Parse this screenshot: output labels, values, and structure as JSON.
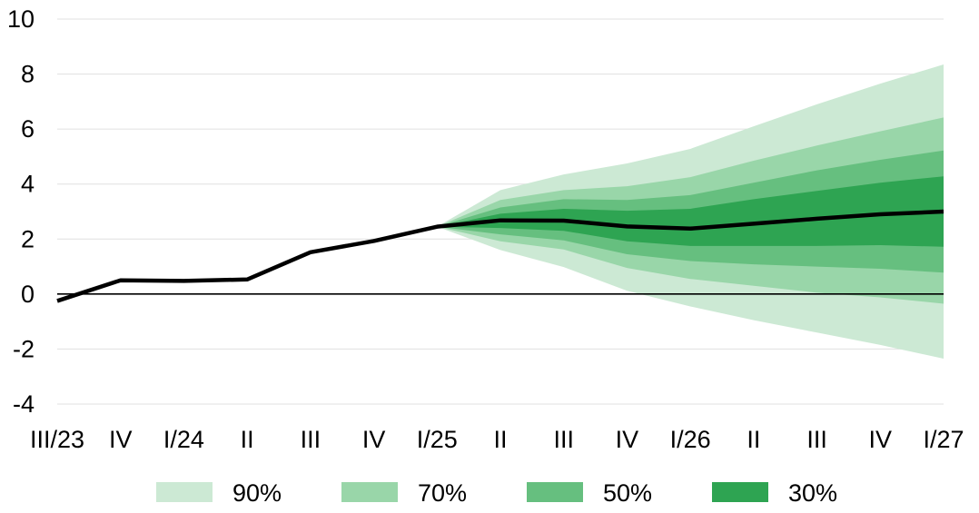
{
  "chart_data": {
    "type": "area",
    "title": "",
    "xlabel": "",
    "ylabel": "",
    "categories": [
      "III/23",
      "IV",
      "I/24",
      "II",
      "III",
      "IV",
      "I/25",
      "II",
      "III",
      "IV",
      "I/26",
      "II",
      "III",
      "IV",
      "I/27"
    ],
    "ylim": [
      -4,
      10
    ],
    "yticks": [
      -4,
      -2,
      0,
      2,
      4,
      6,
      8,
      10
    ],
    "grid": true,
    "legend_position": "bottom",
    "central": {
      "color": "#000000",
      "values": [
        -0.25,
        0.5,
        0.48,
        0.53,
        1.52,
        1.93,
        2.45,
        2.68,
        2.67,
        2.46,
        2.38,
        2.56,
        2.74,
        2.9,
        3.0
      ]
    },
    "fan_start_index": 6,
    "bands": [
      {
        "name": "90%",
        "color": "#cce9d4",
        "lower": [
          2.45,
          1.6,
          0.98,
          0.12,
          -0.45,
          -0.95,
          -1.4,
          -1.85,
          -2.35
        ],
        "upper": [
          2.45,
          3.78,
          4.35,
          4.75,
          5.28,
          6.1,
          6.9,
          7.65,
          8.35
        ]
      },
      {
        "name": "70%",
        "color": "#99d6a9",
        "lower": [
          2.45,
          1.92,
          1.62,
          0.95,
          0.55,
          0.3,
          0.05,
          -0.12,
          -0.35
        ],
        "upper": [
          2.45,
          3.42,
          3.78,
          3.92,
          4.25,
          4.85,
          5.4,
          5.92,
          6.42
        ]
      },
      {
        "name": "50%",
        "color": "#66bf7f",
        "lower": [
          2.45,
          2.17,
          1.95,
          1.45,
          1.2,
          1.08,
          1.0,
          0.92,
          0.78
        ],
        "upper": [
          2.45,
          3.15,
          3.45,
          3.42,
          3.6,
          4.05,
          4.5,
          4.88,
          5.22
        ]
      },
      {
        "name": "30%",
        "color": "#2ea452",
        "lower": [
          2.45,
          2.4,
          2.3,
          1.92,
          1.75,
          1.75,
          1.75,
          1.78,
          1.72
        ],
        "upper": [
          2.45,
          2.92,
          3.1,
          3.03,
          3.1,
          3.45,
          3.75,
          4.05,
          4.28
        ]
      }
    ],
    "legend": [
      {
        "label": "90%",
        "color": "#cce9d4"
      },
      {
        "label": "70%",
        "color": "#99d6a9"
      },
      {
        "label": "50%",
        "color": "#66bf7f"
      },
      {
        "label": "30%",
        "color": "#2ea452"
      }
    ]
  }
}
